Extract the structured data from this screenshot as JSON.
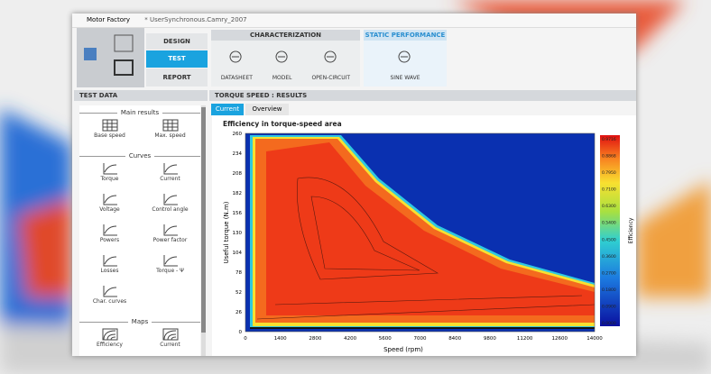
{
  "window": {
    "app_name": "Motor Factory",
    "document": "* UserSynchronous.Camry_2007"
  },
  "nav": [
    "DESIGN",
    "TEST",
    "REPORT"
  ],
  "ribbon": {
    "characterization": {
      "title": "CHARACTERIZATION",
      "items": [
        "DATASHEET",
        "MODEL",
        "OPEN-CIRCUIT"
      ]
    },
    "static_performance": {
      "title": "STATIC PERFORMANCE",
      "items": [
        "SINE WAVE"
      ]
    }
  },
  "test_data": {
    "title": "TEST DATA",
    "groups": [
      {
        "title": "Main results",
        "items": [
          "Base speed",
          "Max. speed"
        ]
      },
      {
        "title": "Curves",
        "items": [
          "Torque",
          "Current",
          "Voltage",
          "Control angle",
          "Powers",
          "Power factor",
          "Losses",
          "Torque - Ψ",
          "Char. curves"
        ]
      },
      {
        "title": "Maps",
        "items": [
          "Efficiency",
          "Current"
        ]
      }
    ]
  },
  "results": {
    "title": "TORQUE SPEED : RESULTS",
    "tabs": [
      "Current",
      "Overview"
    ],
    "plot": {
      "title": "Efficiency in torque-speed area",
      "x_label": "Speed (rpm)",
      "y_label": "Useful torque (N.m)",
      "x_ticks": [
        0,
        1400,
        2800,
        4200,
        5600,
        7000,
        8400,
        9800,
        11200,
        12600,
        14000
      ],
      "y_ticks": [
        0,
        26,
        52,
        78,
        104,
        130,
        156,
        182,
        208,
        234,
        260
      ],
      "colorbar_label": "Efficiency",
      "colorbar_ticks": [
        "0.9716",
        "0.8868",
        "0.7950",
        "0.7100",
        "0.6300",
        "0.5400",
        "0.4500",
        "0.3600",
        "0.2700",
        "0.1800",
        "0.0900",
        "0.0000"
      ]
    }
  }
}
